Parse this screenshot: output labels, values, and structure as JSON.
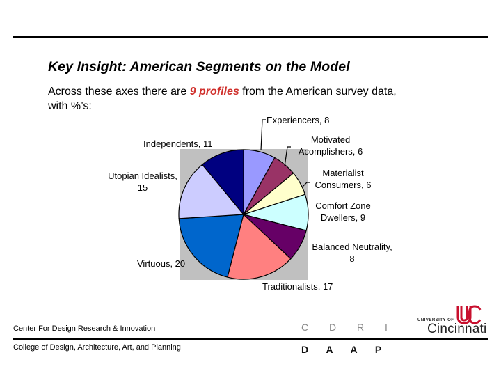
{
  "slide": {
    "title": "Key Insight:  American Segments on the Model",
    "body": {
      "pre": "Across these axes there are ",
      "highlight": "9 profiles",
      "post": " from the American survey data, with %’s:",
      "highlight_color": "#d0312d"
    }
  },
  "chart_data": {
    "type": "pie",
    "title": "",
    "start_angle_deg": 90,
    "direction": "clockwise",
    "background": "#c0c0c0",
    "legend": "none (data labels with leader lines)",
    "slices": [
      {
        "label": "Experiencers",
        "value": 8,
        "color": "#9999ff"
      },
      {
        "label": "Motivated Acomplishers",
        "value": 6,
        "color": "#993366"
      },
      {
        "label": "Materialist Consumers",
        "value": 6,
        "color": "#ffffcc"
      },
      {
        "label": "Comfort Zone Dwellers",
        "value": 9,
        "color": "#ccffff"
      },
      {
        "label": "Balanced Neutrality",
        "value": 8,
        "color": "#660066"
      },
      {
        "label": "Traditionalists",
        "value": 17,
        "color": "#ff8080"
      },
      {
        "label": "Virtuous",
        "value": 20,
        "color": "#0066cc"
      },
      {
        "label": "Utopian Idealists",
        "value": 15,
        "color": "#ccccff"
      },
      {
        "label": "Independents",
        "value": 11,
        "color": "#000080"
      }
    ],
    "data_labels": [
      {
        "lines": [
          "Experiencers, 8"
        ]
      },
      {
        "lines": [
          "Motivated",
          "Acomplishers, 6"
        ]
      },
      {
        "lines": [
          "Materialist",
          "Consumers, 6"
        ]
      },
      {
        "lines": [
          "Comfort Zone",
          "Dwellers, 9"
        ]
      },
      {
        "lines": [
          "Balanced Neutrality,",
          "8"
        ]
      },
      {
        "lines": [
          "Traditionalists, 17"
        ]
      },
      {
        "lines": [
          "Virtuous, 20"
        ]
      },
      {
        "lines": [
          "Utopian Idealists,",
          "15"
        ]
      },
      {
        "lines": [
          "Independents, 11"
        ]
      }
    ]
  },
  "footer": {
    "center_name": "Center For Design Research & Innovation",
    "college_name": "College of Design, Architecture, Art, and Planning",
    "cdri_logo": "C D R I",
    "daap_logo": "D A A P",
    "uc_logo": {
      "small": "UNIVERSITY OF",
      "big": "Cincinnati",
      "mark_color": "#c8102e"
    }
  }
}
